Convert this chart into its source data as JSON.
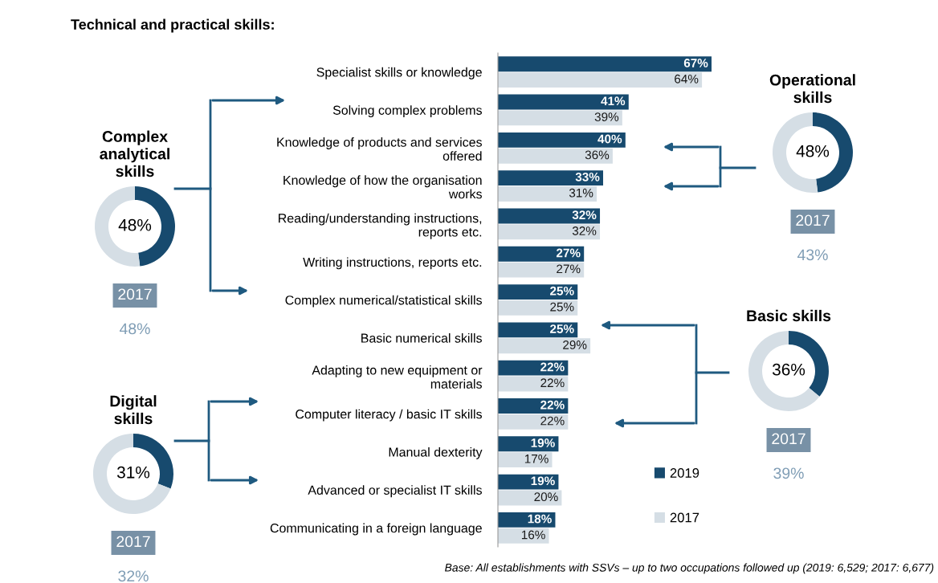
{
  "chart_data": [
    {
      "type": "bar",
      "orientation": "horizontal",
      "title": "Technical and practical skills:",
      "categories": [
        "Specialist skills or knowledge",
        "Solving complex problems",
        "Knowledge of products and services\noffered",
        "Knowledge of how the organisation\nworks",
        "Reading/understanding instructions,\nreports etc.",
        "Writing instructions, reports etc.",
        "Complex numerical/statistical skills",
        "Basic numerical skills",
        "Adapting to new equipment or\nmaterials",
        "Computer literacy / basic IT skills",
        "Manual dexterity",
        "Advanced or specialist IT skills",
        "Communicating in a foreign language"
      ],
      "series": [
        {
          "name": "2019",
          "color": "#174a6e",
          "values": [
            67,
            41,
            40,
            33,
            32,
            27,
            25,
            25,
            22,
            22,
            19,
            19,
            18
          ],
          "value_labels": [
            "67%",
            "41%",
            "40%",
            "33%",
            "32%",
            "27%",
            "25%",
            "25%",
            "22%",
            "22%",
            "19%",
            "19%",
            "18%"
          ]
        },
        {
          "name": "2017",
          "color": "#d5dee5",
          "values": [
            64,
            39,
            36,
            31,
            32,
            27,
            25,
            29,
            22,
            22,
            17,
            20,
            16
          ],
          "value_labels": [
            "64%",
            "39%",
            "36%",
            "31%",
            "32%",
            "27%",
            "25%",
            "29%",
            "22%",
            "22%",
            "17%",
            "20%",
            "16%"
          ]
        }
      ],
      "legend": "bottom right",
      "annotations": [
        "Base: All establishments with SSVs – up to two occupations followed up (2019: 6,529; 2017: 6,677)"
      ]
    },
    {
      "type": "donut",
      "title": "Operational\nskills",
      "categories": [
        null,
        null
      ],
      "values": [
        48,
        52
      ],
      "colors": [
        "#174a6e",
        "#d5dee5"
      ],
      "annotations": [
        "48%",
        "2017",
        "43%"
      ]
    },
    {
      "type": "donut",
      "title": "Complex\nanalytical\nskills",
      "categories": [
        null,
        null
      ],
      "values": [
        48,
        52
      ],
      "colors": [
        "#174a6e",
        "#d5dee5"
      ],
      "annotations": [
        "48%",
        "2017",
        "48%"
      ]
    },
    {
      "type": "donut",
      "title": "Basic skills",
      "categories": [
        null,
        null
      ],
      "values": [
        36,
        64
      ],
      "colors": [
        "#174a6e",
        "#d5dee5"
      ],
      "annotations": [
        "36%",
        "2017",
        "39%"
      ]
    },
    {
      "type": "donut",
      "title": "Digital\nskills",
      "categories": [
        null,
        null
      ],
      "values": [
        31,
        69
      ],
      "colors": [
        "#174a6e",
        "#d5dee5"
      ],
      "annotations": [
        "31%",
        "2017",
        "32%"
      ]
    }
  ]
}
